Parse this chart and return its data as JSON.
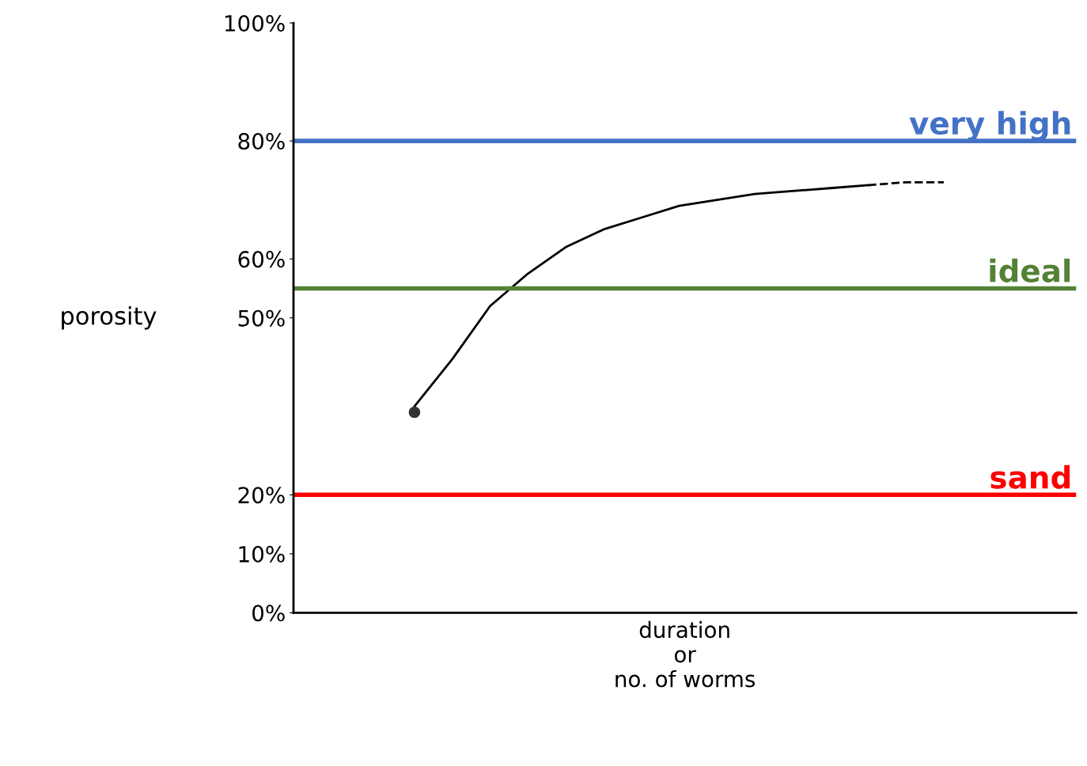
{
  "chart_data": {
    "type": "line",
    "xlabel": "duration\nor\nno. of worms",
    "ylabel": "porosity",
    "categories": [
      null,
      null,
      null,
      null,
      null,
      null,
      null,
      null,
      null,
      null,
      null,
      null,
      null,
      null,
      null,
      null,
      null,
      null,
      null,
      null,
      null
    ],
    "series": [
      {
        "color": "#000000",
        "line_style": "solid",
        "values": [
          null,
          null,
          null,
          35,
          43,
          52,
          57.5,
          62,
          65,
          67,
          69,
          70,
          71,
          71.5,
          72,
          72.5,
          null,
          null,
          null,
          null,
          null
        ]
      },
      {
        "color": "#000000",
        "line_style": "dashed",
        "values": [
          null,
          null,
          null,
          null,
          null,
          null,
          null,
          null,
          null,
          null,
          null,
          null,
          null,
          null,
          null,
          72.5,
          73,
          73,
          null,
          null,
          null
        ]
      },
      {
        "type": "scatter",
        "color": "#333333",
        "marker": "circle",
        "values": [
          null,
          null,
          null,
          34,
          null,
          null,
          null,
          null,
          null,
          null,
          null,
          null,
          null,
          null,
          null,
          null,
          null,
          null,
          null,
          null,
          null
        ]
      }
    ],
    "ylim": [
      0,
      100
    ],
    "yticks": [
      {
        "value": 0,
        "label": "0%"
      },
      {
        "value": 10,
        "label": "10%"
      },
      {
        "value": 20,
        "label": "20%"
      },
      {
        "value": 50,
        "label": "50%"
      },
      {
        "value": 60,
        "label": "60%"
      },
      {
        "value": 80,
        "label": "80%"
      },
      {
        "value": 100,
        "label": "100%"
      }
    ],
    "ref_lines": [
      {
        "axis": "y",
        "value": 80,
        "label": "very high",
        "color": "#4472c4"
      },
      {
        "axis": "y",
        "value": 55,
        "label": "ideal",
        "color": "#548235"
      },
      {
        "axis": "y",
        "value": 20,
        "label": "sand",
        "color": "#ff0000"
      }
    ],
    "grid": false,
    "legend": false
  }
}
